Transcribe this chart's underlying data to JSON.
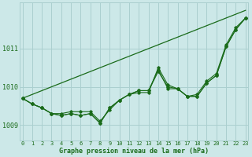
{
  "xlabel": "Graphe pression niveau de la mer (hPa)",
  "ylabel": "",
  "bg_color": "#cce8e8",
  "grid_color": "#aacfcf",
  "line_color": "#1a6b1a",
  "x_ticks": [
    0,
    1,
    2,
    3,
    4,
    5,
    6,
    7,
    8,
    9,
    10,
    11,
    12,
    13,
    14,
    15,
    16,
    17,
    18,
    19,
    20,
    21,
    22,
    23
  ],
  "y_ticks": [
    1009,
    1010,
    1011
  ],
  "ylim": [
    1008.6,
    1012.2
  ],
  "xlim": [
    -0.3,
    23.3
  ],
  "series": [
    [
      1009.7,
      1009.55,
      1009.45,
      1009.3,
      1009.25,
      1009.3,
      1009.25,
      1009.3,
      1009.05,
      1009.45,
      1009.65,
      1009.8,
      1009.9,
      1009.9,
      1010.45,
      1009.95,
      1009.95,
      1009.75,
      1009.75,
      1010.1,
      1010.3,
      1011.05,
      1011.5,
      1011.8
    ],
    [
      1009.7,
      1009.55,
      1009.45,
      1009.3,
      1009.25,
      1009.3,
      1009.25,
      1009.3,
      1009.05,
      1009.45,
      1009.65,
      1009.8,
      1009.9,
      1009.9,
      1010.4,
      1010.0,
      1009.95,
      1009.75,
      1009.8,
      1010.15,
      1010.35,
      1011.1,
      1011.55,
      1011.8
    ],
    [
      1009.7,
      1009.55,
      1009.45,
      1009.3,
      1009.3,
      1009.35,
      1009.35,
      1009.35,
      1009.1,
      1009.4,
      1009.65,
      1009.8,
      1009.85,
      1009.85,
      1010.5,
      1010.05,
      1009.95,
      1009.75,
      1009.75,
      1010.1,
      1010.3,
      1011.05,
      1011.5,
      1011.8
    ]
  ],
  "trend_line": [
    [
      0,
      1009.7
    ],
    [
      23,
      1012.0
    ]
  ]
}
